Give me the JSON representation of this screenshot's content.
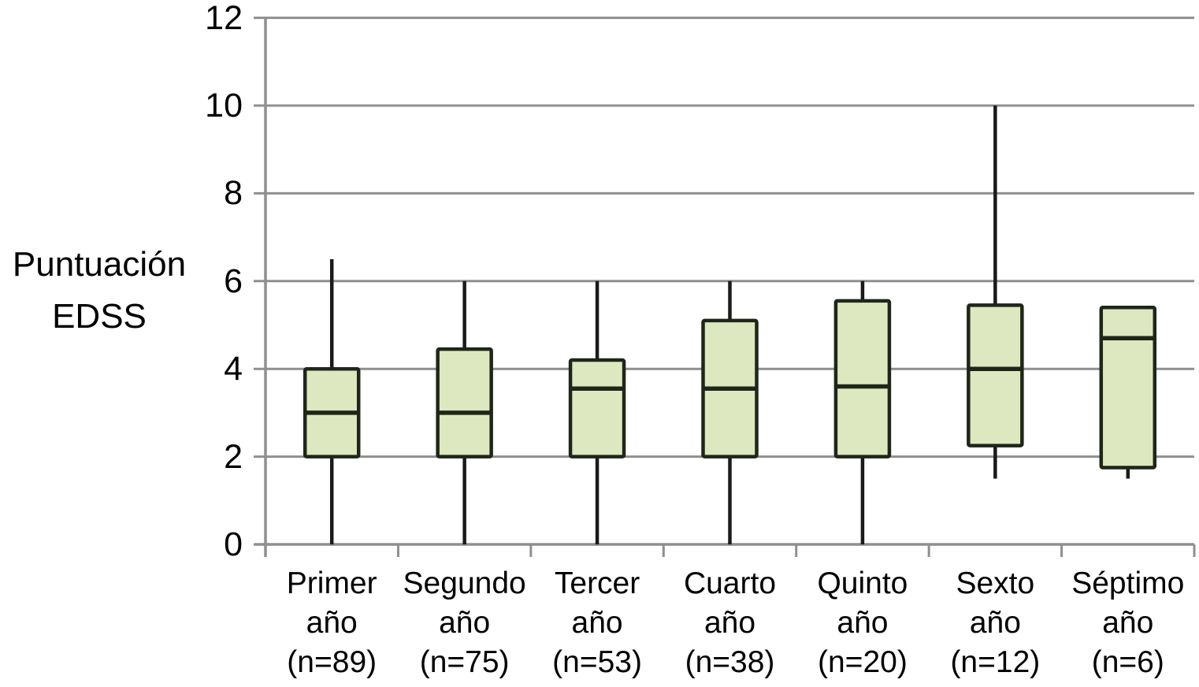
{
  "chart_data": {
    "type": "boxplot",
    "title": "",
    "ylabel_lines": [
      "Puntuación",
      "EDSS"
    ],
    "ylim": [
      0,
      12
    ],
    "ytick_labels_top_to_bottom": [
      12,
      10,
      8,
      6,
      4,
      2,
      0
    ],
    "grid": "horizontal-only",
    "categories": [
      {
        "label_lines": [
          "Primer",
          "año",
          "(n=89)"
        ],
        "n": 89,
        "stats": {
          "whisker_min": 0,
          "q1": 2,
          "median": 3,
          "q3": 4,
          "whisker_max": 6.5
        }
      },
      {
        "label_lines": [
          "Segundo",
          "año",
          "(n=75)"
        ],
        "n": 75,
        "stats": {
          "whisker_min": 0,
          "q1": 2,
          "median": 3,
          "q3": 4.45,
          "whisker_max": 6
        }
      },
      {
        "label_lines": [
          "Tercer",
          "año",
          "(n=53)"
        ],
        "n": 53,
        "stats": {
          "whisker_min": 0,
          "q1": 2,
          "median": 3.55,
          "q3": 4.2,
          "whisker_max": 6
        }
      },
      {
        "label_lines": [
          "Cuarto",
          "año",
          "(n=38)"
        ],
        "n": 38,
        "stats": {
          "whisker_min": 0,
          "q1": 2,
          "median": 3.55,
          "q3": 5.1,
          "whisker_max": 6
        }
      },
      {
        "label_lines": [
          "Quinto",
          "año",
          "(n=20)"
        ],
        "n": 20,
        "stats": {
          "whisker_min": 0,
          "q1": 2,
          "median": 3.6,
          "q3": 5.55,
          "whisker_max": 6
        }
      },
      {
        "label_lines": [
          "Sexto",
          "año",
          "(n=12)"
        ],
        "n": 12,
        "stats": {
          "whisker_min": 1.5,
          "q1": 2.25,
          "median": 4,
          "q3": 5.45,
          "whisker_max": 10
        }
      },
      {
        "label_lines": [
          "Séptimo",
          "año",
          "(n=6)"
        ],
        "n": 6,
        "stats": {
          "whisker_min": 1.5,
          "q1": 1.75,
          "median": 4.7,
          "q3": 5.4,
          "whisker_max": 5.4
        }
      }
    ]
  },
  "colors": {
    "box_fill": "#dde8c1",
    "box_border": "#1f2619",
    "whisker": "#1a1a1a",
    "median": "#1f2619",
    "grid": "#8f8f8f",
    "axis": "#8f8f8f",
    "text": "#000000",
    "background": "#ffffff"
  }
}
